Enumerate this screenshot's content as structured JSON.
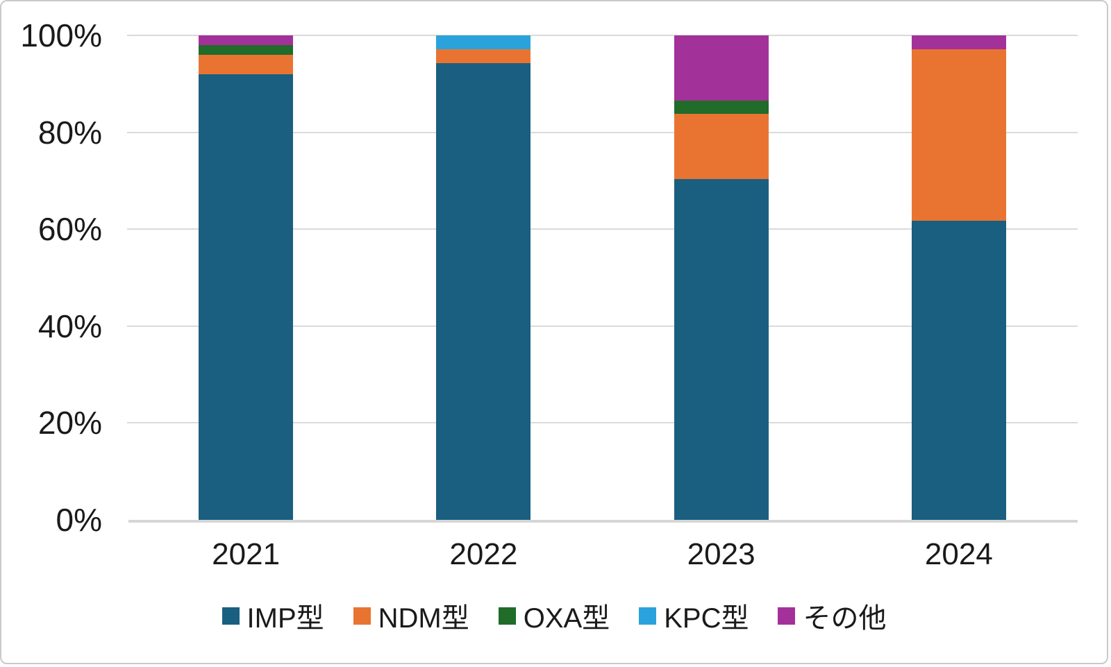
{
  "chart_data": {
    "type": "bar",
    "variant": "stacked-100-percent-column",
    "title": "",
    "xlabel": "",
    "ylabel": "",
    "categories": [
      "2021",
      "2022",
      "2023",
      "2024"
    ],
    "series": [
      {
        "name": "IMP型",
        "color": "#1A5F80",
        "values": [
          92.0,
          94.2,
          70.3,
          61.8
        ]
      },
      {
        "name": "NDM型",
        "color": "#E97432",
        "values": [
          4.0,
          2.9,
          13.5,
          35.3
        ]
      },
      {
        "name": "OXA型",
        "color": "#206C28",
        "values": [
          2.0,
          0.0,
          2.7,
          0.0
        ]
      },
      {
        "name": "KPC型",
        "color": "#2AA3DC",
        "values": [
          0.0,
          2.9,
          0.0,
          0.0
        ]
      },
      {
        "name": "その他",
        "color": "#A3319A",
        "values": [
          2.0,
          0.0,
          13.5,
          2.9
        ]
      }
    ],
    "ylim": [
      0,
      100
    ],
    "y_axis": {
      "ticks": [
        {
          "value": 0,
          "label": "0%"
        },
        {
          "value": 20,
          "label": "20%"
        },
        {
          "value": 40,
          "label": "40%"
        },
        {
          "value": 60,
          "label": "60%"
        },
        {
          "value": 80,
          "label": "80%"
        },
        {
          "value": 100,
          "label": "100%"
        }
      ]
    },
    "grid": true,
    "legend_position": "bottom"
  },
  "style_colors": {
    "background": "#FFFFFF",
    "canvas_border": "#C9C9C9",
    "gridline": "#DADADA",
    "axis_line": "#D6D6D6",
    "text": "#1A1A1A"
  }
}
